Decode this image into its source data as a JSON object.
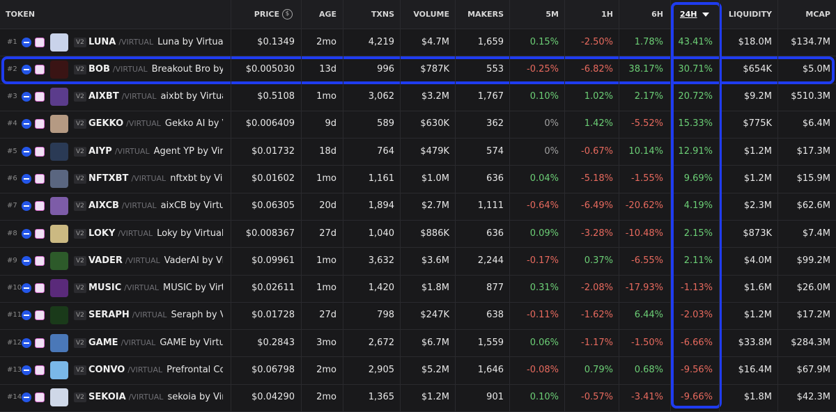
{
  "header": {
    "token": "TOKEN",
    "price": "PRICE",
    "price_icon": "$",
    "age": "AGE",
    "txns": "TXNS",
    "volume": "VOLUME",
    "makers": "MAKERS",
    "m5": "5M",
    "h1": "1H",
    "h6": "6H",
    "h24": "24H",
    "liquidity": "LIQUIDITY",
    "mcap": "MCAP"
  },
  "rows": [
    {
      "rank": "#1",
      "badge": "V2",
      "symbol": "LUNA",
      "quote": "/VIRTUAL",
      "name": "Luna by Virtuals",
      "price": "$0.1349",
      "age": "2mo",
      "txns": "4,219",
      "volume": "$4.7M",
      "makers": "1,659",
      "m5": "0.15%",
      "h1": "-2.50%",
      "h6": "1.78%",
      "h24": "43.41%",
      "liquidity": "$18.0M",
      "mcap": "$134.7M"
    },
    {
      "rank": "#2",
      "badge": "V2",
      "symbol": "BOB",
      "quote": "/VIRTUAL",
      "name": "Breakout Bro by V",
      "price": "$0.005030",
      "age": "13d",
      "txns": "996",
      "volume": "$787K",
      "makers": "553",
      "m5": "-0.25%",
      "h1": "-6.82%",
      "h6": "38.17%",
      "h24": "30.71%",
      "liquidity": "$654K",
      "mcap": "$5.0M"
    },
    {
      "rank": "#3",
      "badge": "V2",
      "symbol": "AIXBT",
      "quote": "/VIRTUAL",
      "name": "aixbt by Virtuals",
      "price": "$0.5108",
      "age": "1mo",
      "txns": "3,062",
      "volume": "$3.2M",
      "makers": "1,767",
      "m5": "0.10%",
      "h1": "1.02%",
      "h6": "2.17%",
      "h24": "20.72%",
      "liquidity": "$9.2M",
      "mcap": "$510.3M"
    },
    {
      "rank": "#4",
      "badge": "V2",
      "symbol": "GEKKO",
      "quote": "/VIRTUAL",
      "name": "Gekko AI by Vir",
      "price": "$0.006409",
      "age": "9d",
      "txns": "589",
      "volume": "$630K",
      "makers": "362",
      "m5": "0%",
      "h1": "1.42%",
      "h6": "-5.52%",
      "h24": "15.33%",
      "liquidity": "$775K",
      "mcap": "$6.4M"
    },
    {
      "rank": "#5",
      "badge": "V2",
      "symbol": "AIYP",
      "quote": "/VIRTUAL",
      "name": "Agent YP by Virtu",
      "price": "$0.01732",
      "age": "18d",
      "txns": "764",
      "volume": "$479K",
      "makers": "574",
      "m5": "0%",
      "h1": "-0.67%",
      "h6": "10.14%",
      "h24": "12.91%",
      "liquidity": "$1.2M",
      "mcap": "$17.3M"
    },
    {
      "rank": "#6",
      "badge": "V2",
      "symbol": "NFTXBT",
      "quote": "/VIRTUAL",
      "name": "nftxbt by Virtuals",
      "price": "$0.01602",
      "age": "1mo",
      "txns": "1,161",
      "volume": "$1.0M",
      "makers": "636",
      "m5": "0.04%",
      "h1": "-5.18%",
      "h6": "-1.55%",
      "h24": "9.69%",
      "liquidity": "$1.2M",
      "mcap": "$15.9M"
    },
    {
      "rank": "#7",
      "badge": "V2",
      "symbol": "AIXCB",
      "quote": "/VIRTUAL",
      "name": "aixCB by Virtual",
      "price": "$0.06305",
      "age": "20d",
      "txns": "1,894",
      "volume": "$2.7M",
      "makers": "1,111",
      "m5": "-0.64%",
      "h1": "-6.49%",
      "h6": "-20.62%",
      "h24": "4.19%",
      "liquidity": "$2.3M",
      "mcap": "$62.6M"
    },
    {
      "rank": "#8",
      "badge": "V2",
      "symbol": "LOKY",
      "quote": "/VIRTUAL",
      "name": "Loky by Virtuals",
      "price": "$0.008367",
      "age": "27d",
      "txns": "1,040",
      "volume": "$886K",
      "makers": "636",
      "m5": "0.09%",
      "h1": "-3.28%",
      "h6": "-10.48%",
      "h24": "2.15%",
      "liquidity": "$873K",
      "mcap": "$7.4M"
    },
    {
      "rank": "#9",
      "badge": "V2",
      "symbol": "VADER",
      "quote": "/VIRTUAL",
      "name": "VaderAI by Virt",
      "price": "$0.09961",
      "age": "1mo",
      "txns": "3,632",
      "volume": "$3.6M",
      "makers": "2,244",
      "m5": "-0.17%",
      "h1": "0.37%",
      "h6": "-6.55%",
      "h24": "2.11%",
      "liquidity": "$4.0M",
      "mcap": "$99.2M"
    },
    {
      "rank": "#10",
      "badge": "V2",
      "symbol": "MUSIC",
      "quote": "/VIRTUAL",
      "name": "MUSIC by Virtu",
      "price": "$0.02611",
      "age": "1mo",
      "txns": "1,420",
      "volume": "$1.8M",
      "makers": "877",
      "m5": "0.31%",
      "h1": "-2.08%",
      "h6": "-17.93%",
      "h24": "-1.13%",
      "liquidity": "$1.6M",
      "mcap": "$26.0M"
    },
    {
      "rank": "#11",
      "badge": "V2",
      "symbol": "SERAPH",
      "quote": "/VIRTUAL",
      "name": "Seraph by Vir",
      "price": "$0.01728",
      "age": "27d",
      "txns": "798",
      "volume": "$247K",
      "makers": "638",
      "m5": "-0.11%",
      "h1": "-1.62%",
      "h6": "6.44%",
      "h24": "-2.03%",
      "liquidity": "$1.2M",
      "mcap": "$17.2M"
    },
    {
      "rank": "#12",
      "badge": "V2",
      "symbol": "GAME",
      "quote": "/VIRTUAL",
      "name": "GAME by Virtual",
      "price": "$0.2843",
      "age": "3mo",
      "txns": "2,672",
      "volume": "$6.7M",
      "makers": "1,559",
      "m5": "0.06%",
      "h1": "-1.17%",
      "h6": "-1.50%",
      "h24": "-6.66%",
      "liquidity": "$33.8M",
      "mcap": "$284.3M"
    },
    {
      "rank": "#13",
      "badge": "V2",
      "symbol": "CONVO",
      "quote": "/VIRTUAL",
      "name": "Prefrontal Cort",
      "price": "$0.06798",
      "age": "2mo",
      "txns": "2,905",
      "volume": "$5.2M",
      "makers": "1,646",
      "m5": "-0.08%",
      "h1": "0.79%",
      "h6": "0.68%",
      "h24": "-9.56%",
      "liquidity": "$16.4M",
      "mcap": "$67.9M"
    },
    {
      "rank": "#14",
      "badge": "V2",
      "symbol": "SEKOIA",
      "quote": "/VIRTUAL",
      "name": "sekoia by Virtu",
      "price": "$0.04290",
      "age": "2mo",
      "txns": "1,365",
      "volume": "$1.2M",
      "makers": "901",
      "m5": "0.10%",
      "h1": "-0.57%",
      "h6": "-3.41%",
      "h24": "-9.66%",
      "liquidity": "$1.8M",
      "mcap": "$42.3M"
    }
  ]
}
